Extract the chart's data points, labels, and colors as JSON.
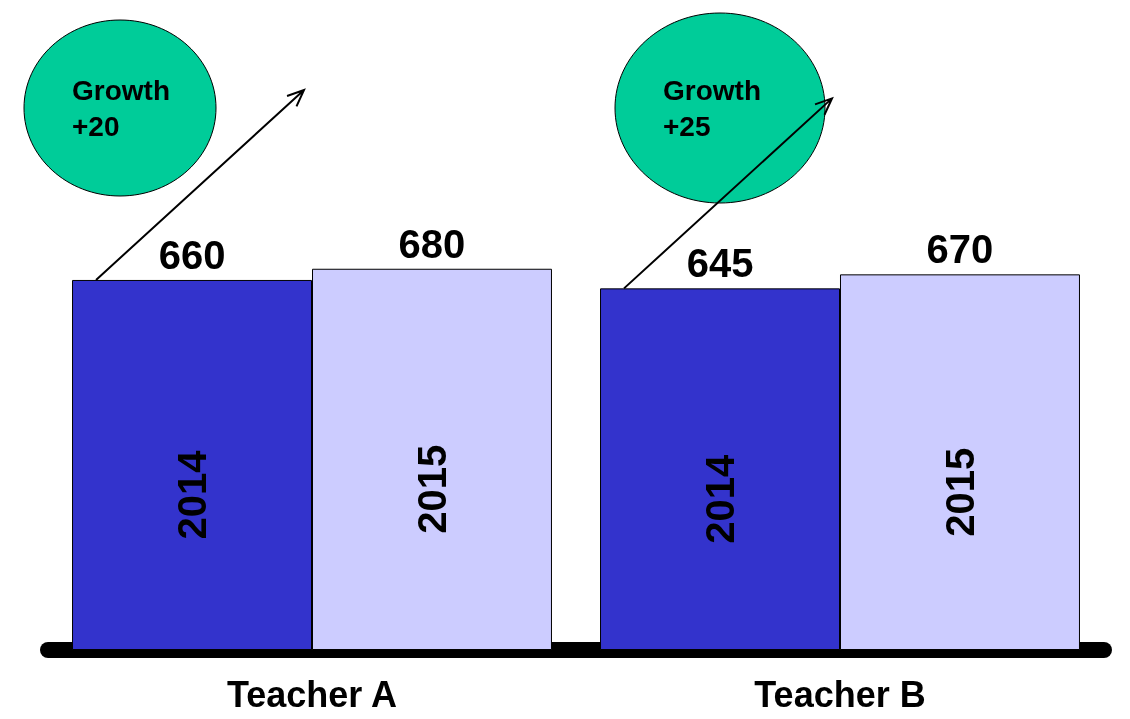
{
  "chart_data": {
    "type": "bar",
    "categories": [
      "Teacher A",
      "Teacher B"
    ],
    "series": [
      {
        "name": "2014",
        "color": "#3333cc",
        "values": [
          660,
          645
        ]
      },
      {
        "name": "2015",
        "color": "#ccccff",
        "values": [
          680,
          670
        ]
      }
    ],
    "data_labels": true,
    "legend": false,
    "grid": false,
    "annotations": [
      "Growth\n+20",
      "Growth\n+25"
    ]
  }
}
